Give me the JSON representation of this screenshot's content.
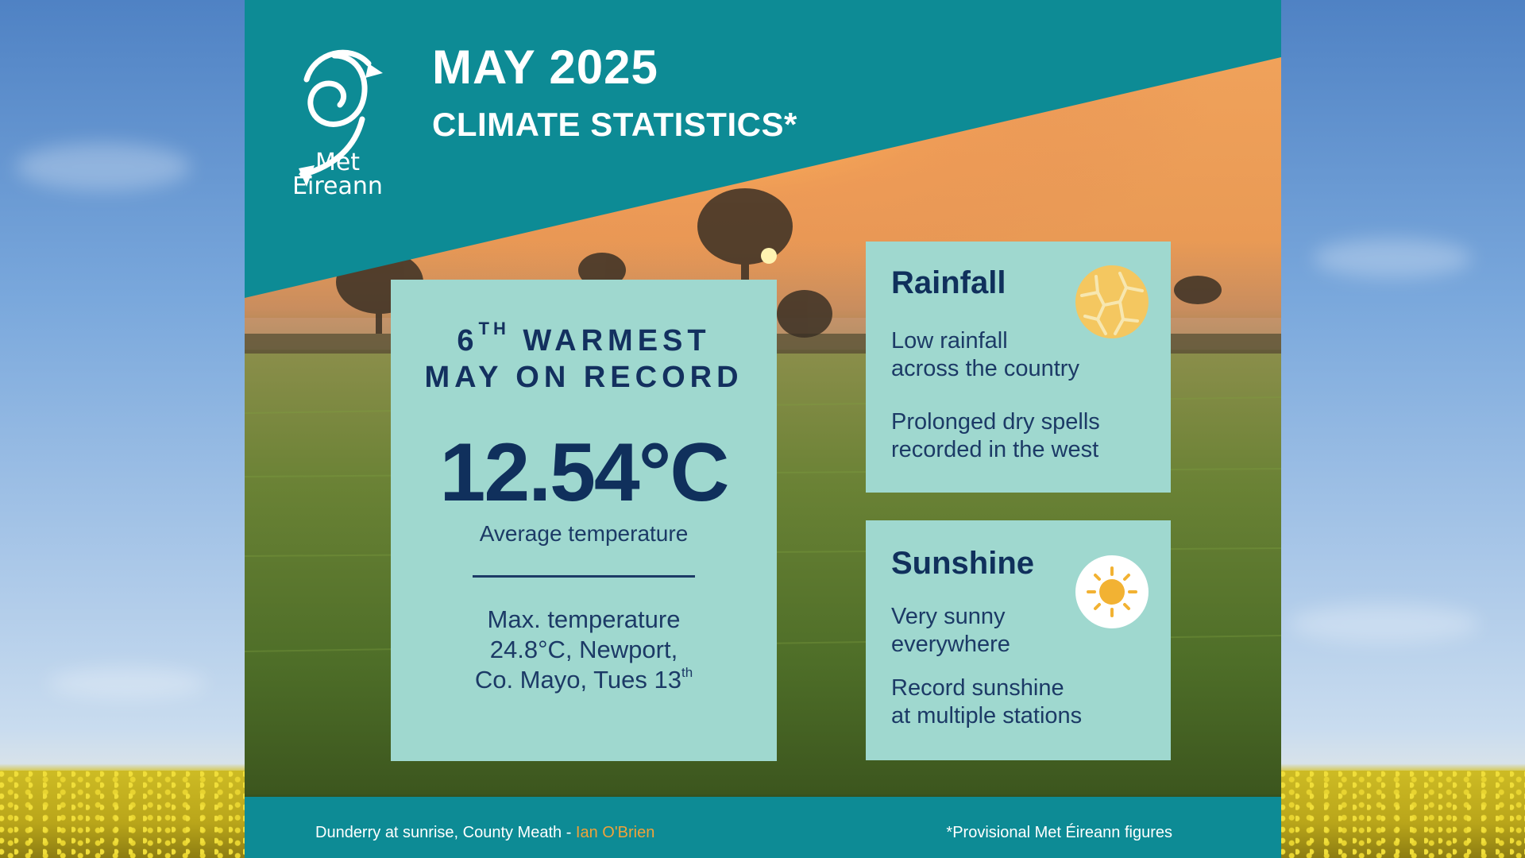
{
  "header": {
    "logo_line1": "Met",
    "logo_line2": "Éireann",
    "title": "MAY 2025",
    "subtitle": "CLIMATE STATISTICS*"
  },
  "main_card": {
    "rank_num": "6",
    "rank_suffix": "TH",
    "rank_rest": "WARMEST",
    "rank_line2": "MAY ON RECORD",
    "avg_value": "12.54°C",
    "avg_label": "Average temperature",
    "max_line1": "Max. temperature",
    "max_line2": "24.8°C, Newport,",
    "max_line3": "Co. Mayo, Tues 13",
    "max_suffix": "th"
  },
  "rainfall": {
    "heading": "Rainfall",
    "line1a": "Low rainfall",
    "line1b": "across the country",
    "line2a": "Prolonged dry spells",
    "line2b": "recorded in the west",
    "icon": "dry-cracked-earth-icon"
  },
  "sunshine": {
    "heading": "Sunshine",
    "line1a": "Very sunny",
    "line1b": "everywhere",
    "line2a": "Record sunshine",
    "line2b": "at multiple stations",
    "icon": "sun-icon"
  },
  "footer": {
    "credit": "Dunderry at sunrise, County Meath - ",
    "author": "Ian O'Brien",
    "note": "*Provisional Met Éireann figures"
  },
  "colors": {
    "teal": "#0d8b95",
    "card": "#9fd8cf",
    "navy": "#13305f",
    "accent_orange": "#f0a23a",
    "sun_yellow": "#f2b233"
  }
}
